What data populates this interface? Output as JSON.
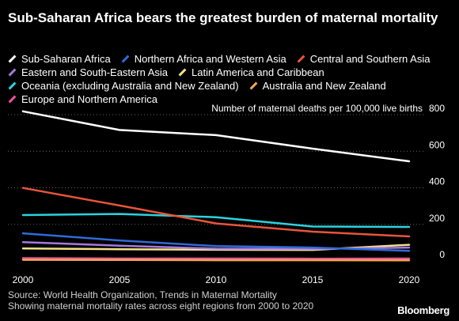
{
  "header": {
    "title": "Sub-Saharan Africa bears the greatest burden of maternal mortality"
  },
  "footer": {
    "source": "Source: World Health Organization, Trends in Maternal Mortality",
    "note": "Showing maternal mortality rates across eight regions from 2000 to 2020",
    "brand": "Bloomberg"
  },
  "chart_data": {
    "type": "line",
    "title": "Sub-Saharan Africa bears the greatest burden of maternal mortality",
    "ylabel": "Number of maternal deaths per 100,000 live births",
    "xlabel": "",
    "x": [
      2000,
      2005,
      2010,
      2015,
      2020
    ],
    "x_ticks": [
      "2000",
      "2005",
      "2010",
      "2015",
      "2020"
    ],
    "y_ticks": [
      "0",
      "200",
      "400",
      "600",
      "800"
    ],
    "ylim": [
      0,
      800
    ],
    "grid": "horizontal dotted",
    "legend_position": "top",
    "series": [
      {
        "name": "Sub-Saharan Africa",
        "color": "#ffffff",
        "values": [
          818,
          716,
          688,
          614,
          545
        ]
      },
      {
        "name": "Northern Africa and Western Asia",
        "color": "#2f6bd9",
        "values": [
          151,
          112,
          81,
          73,
          55
        ]
      },
      {
        "name": "Central and Southern Asia",
        "color": "#e8553a",
        "values": [
          399,
          303,
          205,
          160,
          134
        ]
      },
      {
        "name": "Eastern and South-Eastern Asia",
        "color": "#a678e0",
        "values": [
          103,
          83,
          67,
          66,
          73
        ]
      },
      {
        "name": "Latin America and Caribbean",
        "color": "#f2e18a",
        "values": [
          68,
          64,
          61,
          60,
          88
        ]
      },
      {
        "name": "Oceania (excluding Australia and New Zealand)",
        "color": "#2bd3e0",
        "values": [
          251,
          257,
          239,
          188,
          186
        ]
      },
      {
        "name": "Australia and New Zealand",
        "color": "#f2a84a",
        "values": [
          6,
          5,
          4,
          4,
          3
        ]
      },
      {
        "name": "Europe and Northern America",
        "color": "#ee4fa3",
        "values": [
          15,
          13,
          13,
          12,
          13
        ]
      }
    ]
  }
}
